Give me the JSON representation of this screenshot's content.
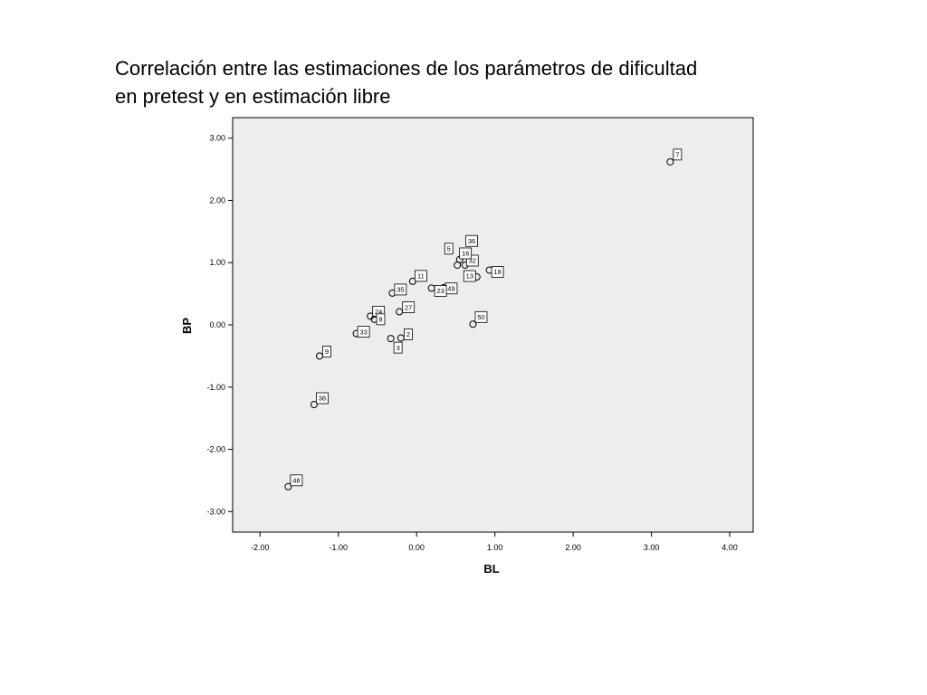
{
  "slide": {
    "title_line1": "Correlación entre las estimaciones de los parámetros de dificultad",
    "title_line2": "en pretest y en estimación libre"
  },
  "chart_data": {
    "type": "scatter",
    "xlabel": "BL",
    "ylabel": "BP",
    "xlim": [
      -2.35,
      4.3
    ],
    "ylim": [
      -3.33,
      3.33
    ],
    "x_ticks": [
      -2.0,
      -1.0,
      0.0,
      1.0,
      2.0,
      3.0,
      4.0
    ],
    "x_tick_labels": [
      "-2.00",
      "-1.00",
      "0.00",
      "1.00",
      "2.00",
      "3.00",
      "4.00"
    ],
    "y_ticks": [
      3.0,
      2.0,
      1.0,
      0.0,
      -1.0,
      -2.0,
      -3.0
    ],
    "y_tick_labels": [
      "3.00",
      "2.00",
      "1.00",
      "0.00",
      "-1.00",
      "-2.00",
      "-3.00"
    ],
    "grid": false,
    "plot_background": "#ededed",
    "marker": "hollow-circle",
    "points": [
      {
        "label": "7",
        "x": 3.24,
        "y": 2.62
      },
      {
        "label": "5",
        "x": 0.55,
        "y": 1.05
      },
      {
        "label": "36",
        "x": 0.6,
        "y": 1.16
      },
      {
        "label": "32",
        "x": 0.62,
        "y": 0.96
      },
      {
        "label": "18",
        "x": 0.93,
        "y": 0.88
      },
      {
        "label": "49",
        "x": 0.35,
        "y": 0.6
      },
      {
        "label": "13",
        "x": 0.77,
        "y": 0.77
      },
      {
        "label": "16",
        "x": 0.52,
        "y": 0.96
      },
      {
        "label": "11",
        "x": -0.05,
        "y": 0.7
      },
      {
        "label": "35",
        "x": -0.31,
        "y": 0.51
      },
      {
        "label": "23",
        "x": 0.19,
        "y": 0.59
      },
      {
        "label": "27",
        "x": -0.22,
        "y": 0.21
      },
      {
        "label": "24",
        "x": -0.59,
        "y": 0.14
      },
      {
        "label": "33",
        "x": -0.77,
        "y": -0.14
      },
      {
        "label": "8",
        "x": -0.54,
        "y": 0.09
      },
      {
        "label": "2",
        "x": -0.2,
        "y": -0.21
      },
      {
        "label": "3",
        "x": -0.33,
        "y": -0.22
      },
      {
        "label": "50",
        "x": 0.72,
        "y": 0.01
      },
      {
        "label": "9",
        "x": -1.24,
        "y": -0.5
      },
      {
        "label": "38",
        "x": -1.31,
        "y": -1.28
      },
      {
        "label": "48",
        "x": -1.64,
        "y": -2.6
      }
    ]
  }
}
